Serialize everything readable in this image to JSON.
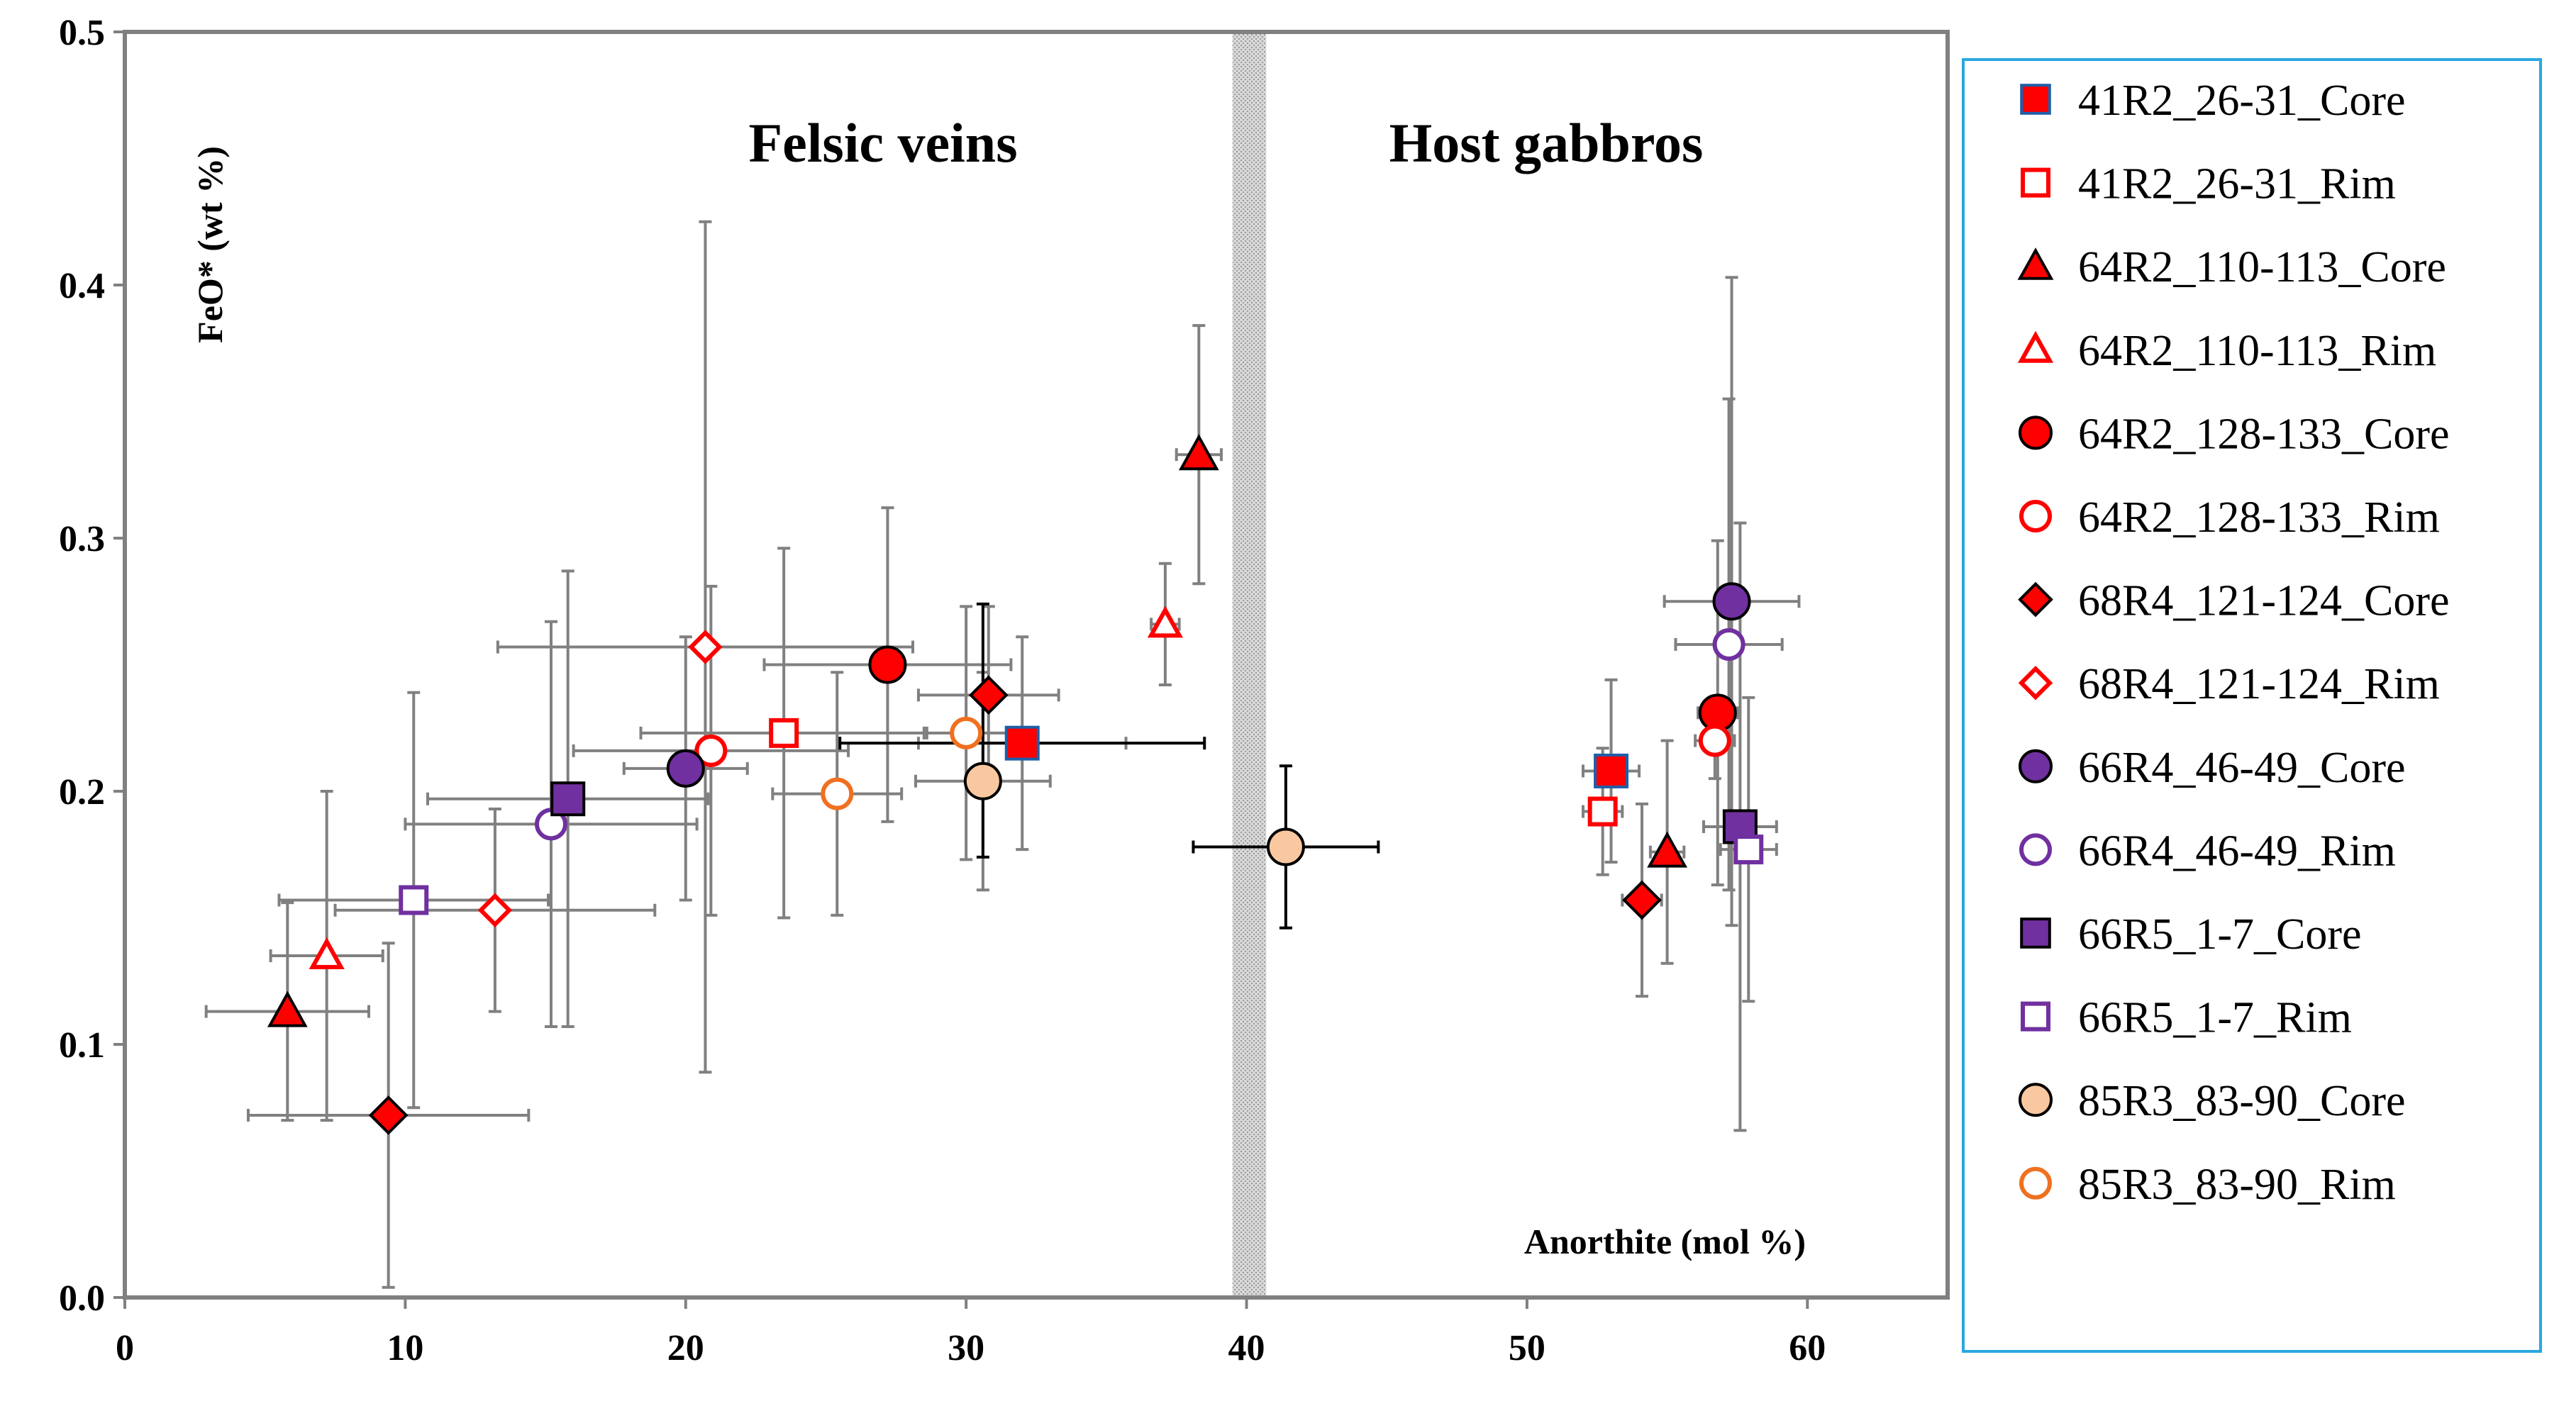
{
  "chart_data": {
    "type": "scatter",
    "xlabel": "Anorthite (mol %)",
    "ylabel": "FeO* (wt %)",
    "xlim": [
      0,
      65
    ],
    "ylim": [
      0,
      0.5
    ],
    "xticks": [
      "0",
      "10",
      "20",
      "30",
      "40",
      "50",
      "60"
    ],
    "yticks": [
      "0.0",
      "0.1",
      "0.2",
      "0.3",
      "0.4",
      "0.5"
    ],
    "divider_band": [
      39.5,
      40.7
    ],
    "region_labels": [
      "Felsic veins",
      "Host gabbros"
    ],
    "series": [
      {
        "name": "41R2_26-31_Core",
        "marker": "square",
        "filled": true,
        "color": "#ff0000",
        "edge": "#1f5fa8",
        "points": [
          {
            "x": 32.0,
            "y": 0.219,
            "xerr": 3.7,
            "yerr": 0.042
          },
          {
            "x": 53.0,
            "y": 0.208,
            "xerr": 1.0,
            "yerr": 0.036
          }
        ]
      },
      {
        "name": "41R2_26-31_Rim",
        "marker": "square",
        "filled": false,
        "color": "#ff0000",
        "points": [
          {
            "x": 23.5,
            "y": 0.223,
            "xerr": 5.1,
            "yerr": 0.073
          },
          {
            "x": 52.7,
            "y": 0.192,
            "xerr": 0.7,
            "yerr": 0.025
          }
        ]
      },
      {
        "name": "64R2_110-113_Core",
        "marker": "triangle",
        "filled": true,
        "color": "#ff0000",
        "points": [
          {
            "x": 5.8,
            "y": 0.113,
            "xerr": 2.9,
            "yerr": 0.043
          },
          {
            "x": 38.3,
            "y": 0.333,
            "xerr": 0.8,
            "yerr": 0.051
          },
          {
            "x": 55.0,
            "y": 0.176,
            "xerr": 0.6,
            "yerr": 0.044
          }
        ]
      },
      {
        "name": "64R2_110-113_Rim",
        "marker": "triangle",
        "filled": false,
        "color": "#ff0000",
        "points": [
          {
            "x": 7.2,
            "y": 0.135,
            "xerr": 2.0,
            "yerr": 0.065
          },
          {
            "x": 37.1,
            "y": 0.266,
            "xerr": 0.5,
            "yerr": 0.024
          }
        ]
      },
      {
        "name": "64R2_128-133_Core",
        "marker": "circle",
        "filled": true,
        "color": "#ff0000",
        "points": [
          {
            "x": 27.2,
            "y": 0.25,
            "xerr": 4.4,
            "yerr": 0.062
          },
          {
            "x": 56.8,
            "y": 0.231,
            "xerr": 0.7,
            "yerr": 0.068
          }
        ]
      },
      {
        "name": "64R2_128-133_Rim",
        "marker": "circle",
        "filled": false,
        "color": "#ff0000",
        "points": [
          {
            "x": 20.9,
            "y": 0.216,
            "xerr": 4.9,
            "yerr": 0.065
          },
          {
            "x": 56.7,
            "y": 0.22,
            "xerr": 0.7,
            "yerr": 0.015
          }
        ]
      },
      {
        "name": "68R4_121-124_Core",
        "marker": "diamond",
        "filled": true,
        "color": "#ff0000",
        "points": [
          {
            "x": 9.4,
            "y": 0.072,
            "xerr": 5.0,
            "yerr": 0.068
          },
          {
            "x": 30.8,
            "y": 0.238,
            "xerr": 2.5,
            "yerr": 0.035
          },
          {
            "x": 54.1,
            "y": 0.157,
            "xerr": 0.7,
            "yerr": 0.038
          }
        ]
      },
      {
        "name": "68R4_121-124_Rim",
        "marker": "diamond",
        "filled": false,
        "color": "#ff0000",
        "points": [
          {
            "x": 13.2,
            "y": 0.153,
            "xerr": 5.7,
            "yerr": 0.04
          },
          {
            "x": 20.7,
            "y": 0.257,
            "xerr": 7.4,
            "yerr": 0.168
          }
        ]
      },
      {
        "name": "66R4_46-49_Core",
        "marker": "circle",
        "filled": true,
        "color": "#7030a0",
        "points": [
          {
            "x": 20.0,
            "y": 0.209,
            "xerr": 2.2,
            "yerr": 0.052
          },
          {
            "x": 57.3,
            "y": 0.275,
            "xerr": 2.4,
            "yerr": 0.128
          }
        ]
      },
      {
        "name": "66R4_46-49_Rim",
        "marker": "circle",
        "filled": false,
        "color": "#7030a0",
        "points": [
          {
            "x": 15.2,
            "y": 0.187,
            "xerr": 5.2,
            "yerr": 0.08
          },
          {
            "x": 57.2,
            "y": 0.258,
            "xerr": 1.9,
            "yerr": 0.097
          }
        ]
      },
      {
        "name": "66R5_1-7_Core",
        "marker": "square",
        "filled": true,
        "color": "#7030a0",
        "points": [
          {
            "x": 15.8,
            "y": 0.197,
            "xerr": 5.0,
            "yerr": 0.09
          },
          {
            "x": 57.6,
            "y": 0.186,
            "xerr": 1.3,
            "yerr": 0.12
          }
        ]
      },
      {
        "name": "66R5_1-7_Rim",
        "marker": "square",
        "filled": false,
        "color": "#7030a0",
        "points": [
          {
            "x": 10.3,
            "y": 0.157,
            "xerr": 4.8,
            "yerr": 0.082
          },
          {
            "x": 57.9,
            "y": 0.177,
            "xerr": 1.0,
            "yerr": 0.06
          }
        ]
      },
      {
        "name": "85R3_83-90_Core",
        "marker": "circle",
        "filled": true,
        "color": "#f9c8a0",
        "points": [
          {
            "x": 30.6,
            "y": 0.204,
            "xerr": 2.4,
            "yerr": 0.043
          },
          {
            "x": 41.4,
            "y": 0.178,
            "xerr": 3.3,
            "yerr": 0.032,
            "errcolor": "#000000"
          }
        ]
      },
      {
        "name": "85R3_83-90_Rim",
        "marker": "circle",
        "filled": false,
        "color": "#f07020",
        "points": [
          {
            "x": 25.4,
            "y": 0.199,
            "xerr": 2.3,
            "yerr": 0.048
          },
          {
            "x": 30.0,
            "y": 0.223,
            "xerr": 1.5,
            "yerr": 0.05
          }
        ]
      }
    ],
    "black_error_points": [
      {
        "x": 32.0,
        "y": 0.219,
        "xerr": 6.5,
        "yerr": 0.0
      },
      {
        "x": 30.6,
        "y": 0.224,
        "xerr": 0.0,
        "yerr": 0.05
      }
    ]
  }
}
